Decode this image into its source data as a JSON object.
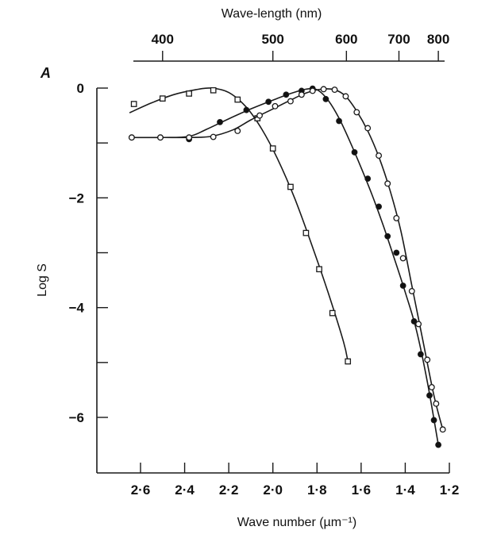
{
  "chart_data": {
    "type": "line",
    "panel_label": "A",
    "title": "",
    "xlabel": "Wave number (µm⁻¹)",
    "ylabel": "Log S",
    "top_xlabel": "Wave-length (nm)",
    "xlim": [
      2.7,
      1.2
    ],
    "ylim": [
      -7,
      0
    ],
    "x_reversed": true,
    "grid": false,
    "legend": "none",
    "x_ticks": [
      2.6,
      2.4,
      2.2,
      2.0,
      1.8,
      1.6,
      1.4,
      1.2
    ],
    "x_tick_labels": [
      "2·6",
      "2·4",
      "2·2",
      "2·0",
      "1·8",
      "1·6",
      "1·4",
      "1·2"
    ],
    "y_ticks": [
      0,
      -1,
      -2,
      -3,
      -4,
      -5,
      -6
    ],
    "y_tick_labels": [
      "0",
      "",
      "−2",
      "",
      "−4",
      "",
      "−6"
    ],
    "top_ticks_nm": [
      400,
      500,
      600,
      700,
      800
    ],
    "top_tick_labels": [
      "400",
      "500",
      "600",
      "700",
      "800"
    ],
    "series": [
      {
        "name": "open squares",
        "marker": "square-open",
        "x": [
          2.63,
          2.5,
          2.38,
          2.27,
          2.16,
          2.07,
          2.0,
          1.92,
          1.85,
          1.79,
          1.73,
          1.66
        ],
        "y": [
          -0.29,
          -0.19,
          -0.1,
          -0.04,
          -0.21,
          -0.55,
          -1.1,
          -1.8,
          -2.64,
          -3.3,
          -4.1,
          -4.98
        ],
        "curve": {
          "x": [
            2.65,
            2.55,
            2.45,
            2.35,
            2.28,
            2.2,
            2.12,
            2.05,
            1.98,
            1.9,
            1.82,
            1.75,
            1.68,
            1.66
          ],
          "y": [
            -0.45,
            -0.27,
            -0.12,
            -0.03,
            0.0,
            -0.08,
            -0.35,
            -0.75,
            -1.28,
            -2.02,
            -2.9,
            -3.72,
            -4.62,
            -4.98
          ]
        }
      },
      {
        "name": "filled circles",
        "marker": "circle-filled",
        "x": [
          2.64,
          2.51,
          2.38,
          2.24,
          2.12,
          2.02,
          1.94,
          1.87,
          1.82,
          1.76,
          1.7,
          1.63,
          1.57,
          1.52,
          1.48,
          1.44,
          1.41,
          1.36,
          1.33,
          1.29,
          1.27,
          1.25
        ],
        "y": [
          -0.9,
          -0.9,
          -0.93,
          -0.62,
          -0.4,
          -0.25,
          -0.12,
          -0.05,
          -0.01,
          -0.2,
          -0.6,
          -1.17,
          -1.65,
          -2.16,
          -2.7,
          -3.0,
          -3.6,
          -4.25,
          -4.85,
          -5.6,
          -6.05,
          -6.5
        ],
        "curve": {
          "x": [
            2.64,
            2.5,
            2.38,
            2.3,
            2.2,
            2.1,
            2.0,
            1.92,
            1.85,
            1.8,
            1.75,
            1.7,
            1.65,
            1.6,
            1.55,
            1.5,
            1.45,
            1.4,
            1.35,
            1.3,
            1.25
          ],
          "y": [
            -0.9,
            -0.9,
            -0.88,
            -0.75,
            -0.56,
            -0.38,
            -0.22,
            -0.1,
            -0.02,
            -0.03,
            -0.22,
            -0.55,
            -0.98,
            -1.45,
            -1.95,
            -2.5,
            -3.1,
            -3.72,
            -4.4,
            -5.35,
            -6.5
          ]
        }
      },
      {
        "name": "open circles",
        "marker": "circle-open",
        "x": [
          2.64,
          2.51,
          2.38,
          2.27,
          2.16,
          2.06,
          1.99,
          1.92,
          1.87,
          1.82,
          1.77,
          1.72,
          1.67,
          1.62,
          1.57,
          1.52,
          1.48,
          1.44,
          1.41,
          1.37,
          1.34,
          1.3,
          1.28,
          1.26,
          1.23
        ],
        "y": [
          -0.9,
          -0.9,
          -0.9,
          -0.89,
          -0.78,
          -0.5,
          -0.33,
          -0.24,
          -0.12,
          -0.05,
          -0.02,
          -0.03,
          -0.15,
          -0.44,
          -0.73,
          -1.23,
          -1.74,
          -2.37,
          -3.1,
          -3.7,
          -4.3,
          -4.95,
          -5.45,
          -5.75,
          -6.22
        ],
        "curve": {
          "x": [
            2.64,
            2.5,
            2.38,
            2.28,
            2.18,
            2.1,
            2.0,
            1.92,
            1.85,
            1.78,
            1.72,
            1.67,
            1.62,
            1.57,
            1.52,
            1.47,
            1.42,
            1.37,
            1.32,
            1.27,
            1.23
          ],
          "y": [
            -0.9,
            -0.9,
            -0.9,
            -0.88,
            -0.76,
            -0.58,
            -0.38,
            -0.22,
            -0.09,
            -0.02,
            -0.03,
            -0.15,
            -0.42,
            -0.78,
            -1.25,
            -1.85,
            -2.6,
            -3.6,
            -4.6,
            -5.6,
            -6.22
          ]
        }
      }
    ]
  }
}
